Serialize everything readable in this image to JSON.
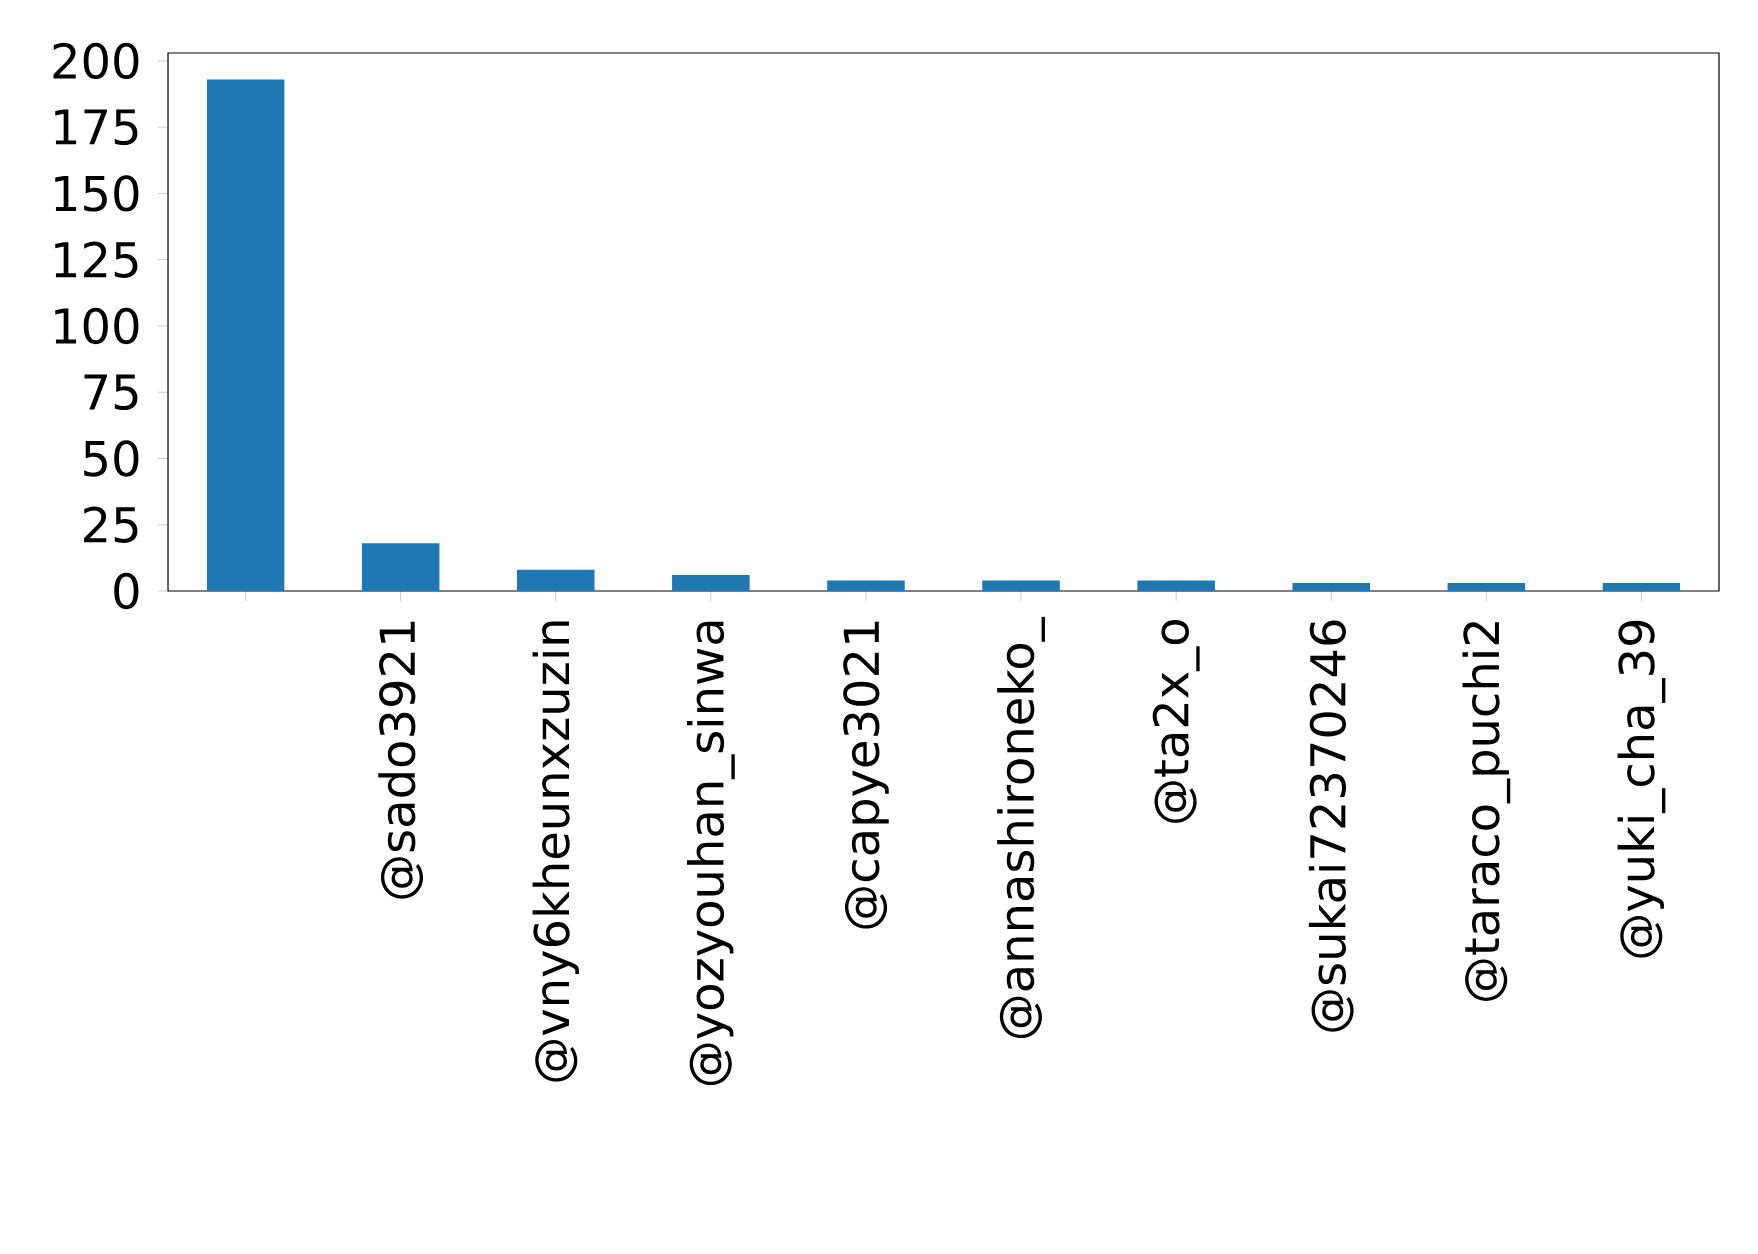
{
  "chart_data": {
    "type": "bar",
    "categories": [
      null,
      "@sado3921",
      "@vny6kheunxzuzin",
      "@yozyouhan_sinwa",
      "@capye3021",
      "@annashironeko_",
      "@ta2x_o",
      "@sukai72370246",
      "@taraco_puchi2",
      "@yuki_cha_39"
    ],
    "values": [
      193,
      18,
      8,
      6,
      4,
      4,
      4,
      3,
      3,
      3
    ],
    "color": "#1f77b4",
    "ylim": [
      0,
      203
    ],
    "yticks": [
      0,
      25,
      50,
      75,
      100,
      125,
      150,
      175,
      200
    ],
    "grid": false
  }
}
